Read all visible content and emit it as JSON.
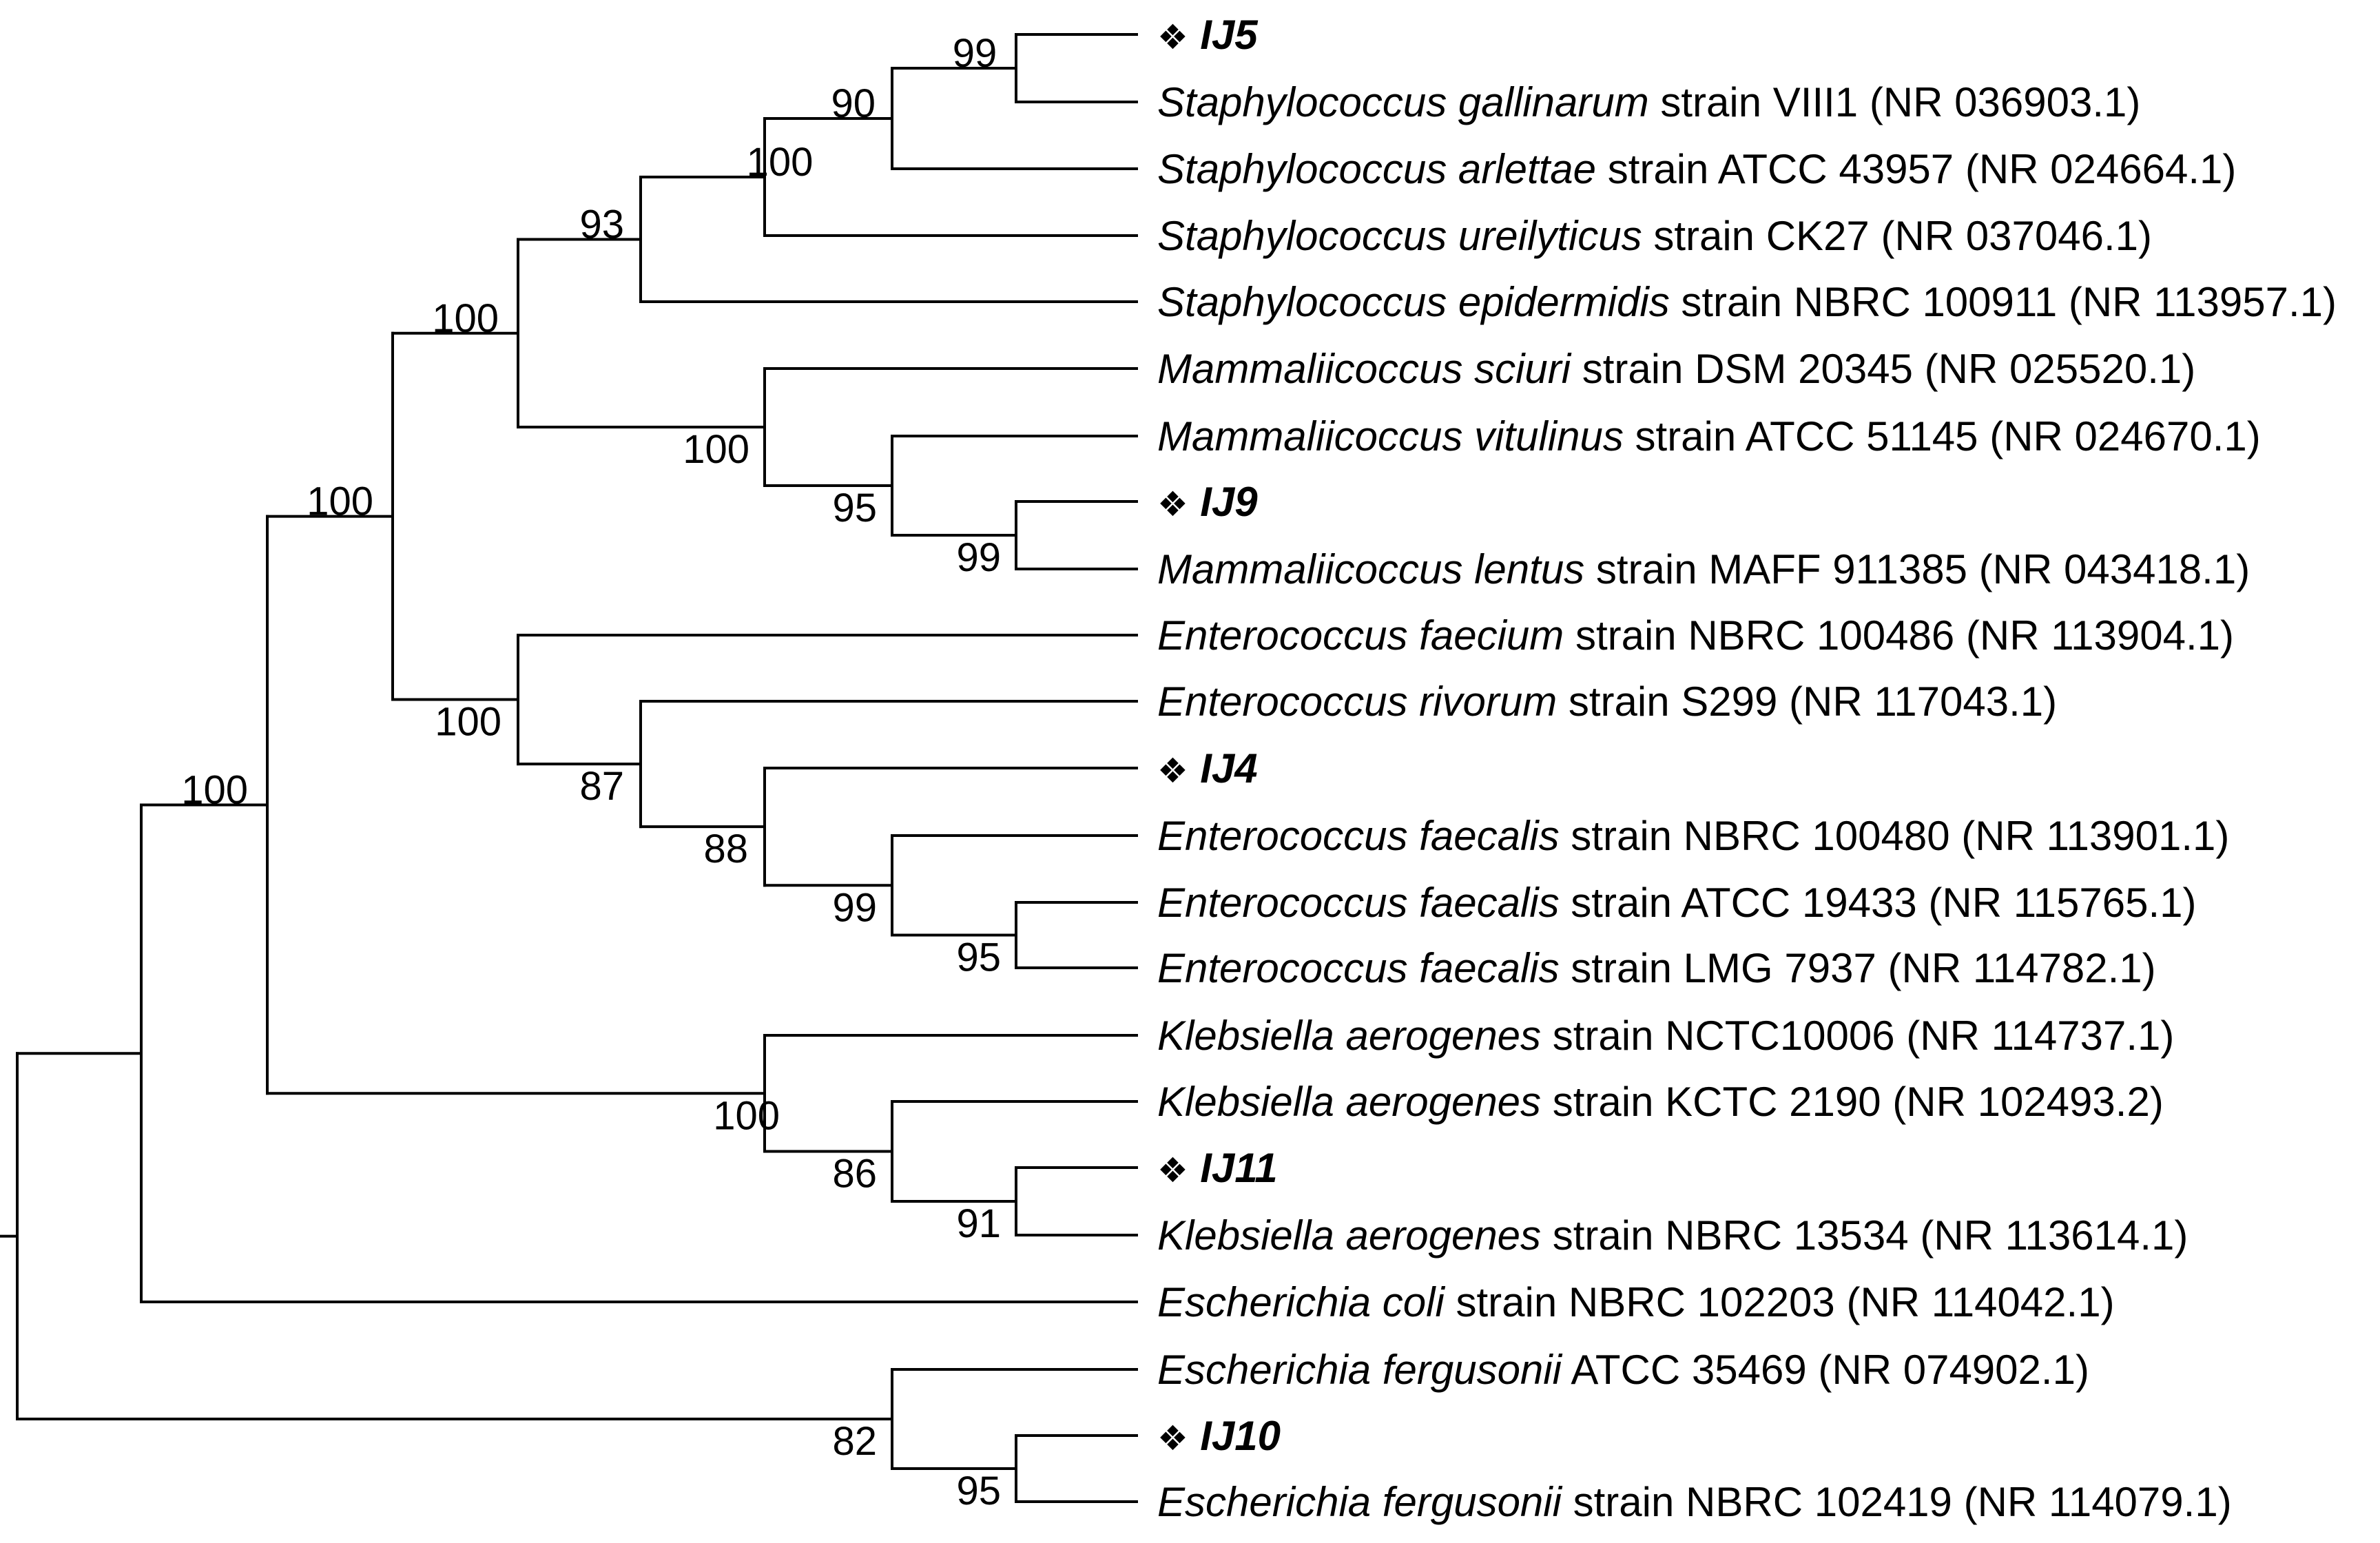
{
  "taxa": [
    {
      "id": "IJ5",
      "kind": "isolate",
      "marker": "❖",
      "name": "IJ5"
    },
    {
      "id": "s_gallinarum",
      "kind": "ref",
      "genus": "Staphylococcus",
      "species": "gallinarum",
      "rest": " strain VIII1  (NR 036903.1)"
    },
    {
      "id": "s_arlettae",
      "kind": "ref",
      "genus": "Staphylococcus",
      "species": "arlettae",
      "rest": " strain ATCC 43957 (NR 024664.1)"
    },
    {
      "id": "s_ureilyticus",
      "kind": "ref",
      "genus": "Staphylococcus",
      "species": "ureilyticus",
      "rest": " strain CK27 (NR 037046.1)"
    },
    {
      "id": "s_epidermidis",
      "kind": "ref",
      "genus": "Staphylococcus",
      "species": "epidermidis",
      "rest": " strain NBRC 100911 (NR 113957.1)"
    },
    {
      "id": "m_sciuri",
      "kind": "ref",
      "genus": "Mammaliicoccus",
      "species": "sciuri",
      "rest": " strain DSM 20345 (NR 025520.1)"
    },
    {
      "id": "m_vitulinus",
      "kind": "ref",
      "genus": "Mammaliicoccus",
      "species": "vitulinus",
      "rest": " strain ATCC 51145 (NR 024670.1)"
    },
    {
      "id": "IJ9",
      "kind": "isolate",
      "marker": "❖",
      "name": "IJ9"
    },
    {
      "id": "m_lentus",
      "kind": "ref",
      "genus": "Mammaliicoccus",
      "species": "lentus",
      "rest": " strain MAFF 911385 (NR 043418.1)"
    },
    {
      "id": "e_faecium",
      "kind": "ref",
      "genus": "Enterococcus",
      "species": "faecium",
      "rest": " strain NBRC 100486 (NR 113904.1)"
    },
    {
      "id": "e_rivorum",
      "kind": "ref",
      "genus": "Enterococcus",
      "species": "rivorum",
      "rest": " strain S299 (NR 117043.1)"
    },
    {
      "id": "IJ4",
      "kind": "isolate",
      "marker": "❖",
      "name": "IJ4"
    },
    {
      "id": "e_faecalis1",
      "kind": "ref",
      "genus": "Enterococcus",
      "species": "faecalis",
      "rest": " strain NBRC 100480 (NR 113901.1)"
    },
    {
      "id": "e_faecalis2",
      "kind": "ref",
      "genus": "Enterococcus",
      "species": "faecalis",
      "rest": " strain ATCC 19433 (NR 115765.1)"
    },
    {
      "id": "e_faecalis3",
      "kind": "ref",
      "genus": "Enterococcus",
      "species": "faecalis",
      "rest": " strain LMG 7937 (NR 114782.1)"
    },
    {
      "id": "k_aerogenes1",
      "kind": "ref",
      "genus": "Klebsiella",
      "species": "aerogenes",
      "rest": " strain NCTC10006 (NR 114737.1)"
    },
    {
      "id": "k_aerogenes2",
      "kind": "ref",
      "genus": "Klebsiella",
      "species": "aerogenes",
      "rest": " strain KCTC 2190 (NR 102493.2)"
    },
    {
      "id": "IJ11",
      "kind": "isolate",
      "marker": "❖",
      "name": "IJ11"
    },
    {
      "id": "k_aerogenes3",
      "kind": "ref",
      "genus": "Klebsiella",
      "species": "aerogenes",
      "rest": " strain NBRC 13534 (NR 113614.1)"
    },
    {
      "id": "e_coli",
      "kind": "ref",
      "genus": "Escherichia",
      "species": "coli",
      "rest": " strain NBRC 102203 (NR 114042.1)"
    },
    {
      "id": "e_fergusonii1",
      "kind": "ref",
      "genus": "Escherichia",
      "species": "fergusonii",
      "rest": " ATCC 35469 (NR 074902.1)"
    },
    {
      "id": "IJ10",
      "kind": "isolate",
      "marker": "❖",
      "name": "IJ10"
    },
    {
      "id": "e_fergusonii2",
      "kind": "ref",
      "genus": "Escherichia",
      "species": "fergusonii",
      "rest": " strain NBRC 102419 (NR 114079.1)"
    }
  ],
  "bootstrap": {
    "n_ij5_gall": "99",
    "n_arlettae": "90",
    "n_ureilyticus": "100",
    "n_epidermidis": "93",
    "n_staph_mamm": "100",
    "n_mammaliicoccus": "100",
    "n_vitulinus": "95",
    "n_ij9_lentus": "99",
    "n_gram_pos": "100",
    "n_enterococcus": "100",
    "n_rivorum": "87",
    "n_ij4": "88",
    "n_faecalis": "99",
    "n_faecalis_pair": "95",
    "n_ingroup": "100",
    "n_klebsiella": "100",
    "n_kcct": "86",
    "n_ij11": "91",
    "n_fergusonii": "82",
    "n_ij10": "95"
  }
}
